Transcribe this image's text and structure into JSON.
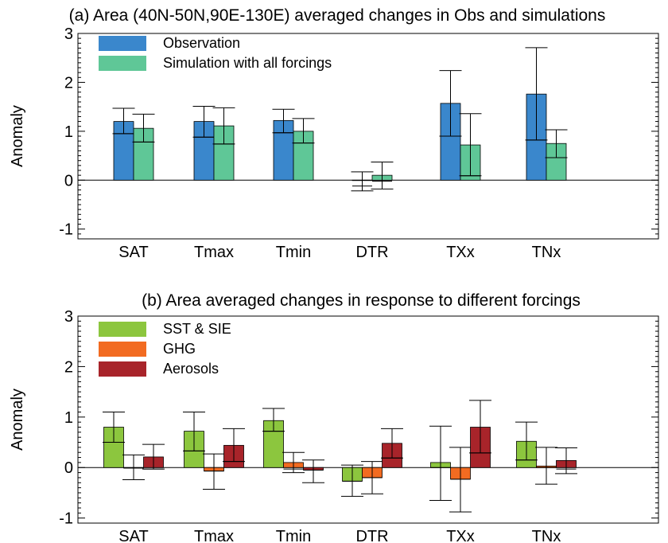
{
  "chart_data": [
    {
      "type": "bar",
      "title": "(a) Area (40N-50N,90E-130E) averaged changes in Obs and simulations",
      "xlabel": "",
      "ylabel": "Anomaly",
      "ylim": [
        -1.2,
        3
      ],
      "yticks": [
        "-1",
        "0",
        "1",
        "2",
        "3"
      ],
      "categories": [
        "SAT",
        "Tmax",
        "Tmin",
        "DTR",
        "TXx",
        "TNx"
      ],
      "legend_position": "top-left",
      "grid": false,
      "series": [
        {
          "name": "Observation",
          "color": "#3a87cc",
          "values": [
            1.2,
            1.2,
            1.22,
            0,
            1.57,
            1.76
          ],
          "box_low": [
            0.95,
            0.88,
            0.97,
            -0.12,
            0.9,
            0.82
          ],
          "box_high": [
            1.2,
            1.2,
            1.22,
            0.0,
            1.57,
            1.76
          ],
          "err_low": [
            0.95,
            0.88,
            0.97,
            -0.22,
            0.9,
            0.82
          ],
          "err_high": [
            1.47,
            1.51,
            1.45,
            0.17,
            2.24,
            2.71
          ]
        },
        {
          "name": "Simulation with all forcings",
          "color": "#5fc797",
          "values": [
            1.06,
            1.11,
            1.0,
            0.1,
            0.72,
            0.75
          ],
          "box_low": [
            0.78,
            0.74,
            0.76,
            -0.02,
            0.09,
            0.46
          ],
          "box_high": [
            1.06,
            1.11,
            1.0,
            0.1,
            0.72,
            0.75
          ],
          "err_low": [
            0.78,
            0.74,
            0.76,
            -0.18,
            0.09,
            0.46
          ],
          "err_high": [
            1.35,
            1.48,
            1.26,
            0.37,
            1.36,
            1.03
          ]
        }
      ]
    },
    {
      "type": "bar",
      "title": "(b) Area averaged changes in response to different forcings",
      "xlabel": "",
      "ylabel": "Anomaly",
      "ylim": [
        -1.1,
        3
      ],
      "yticks": [
        "-1",
        "0",
        "1",
        "2",
        "3"
      ],
      "categories": [
        "SAT",
        "Tmax",
        "Tmin",
        "DTR",
        "TXx",
        "TNx"
      ],
      "legend_position": "top-left",
      "grid": false,
      "series": [
        {
          "name": "SST & SIE",
          "color": "#8cc63e",
          "values": [
            0.8,
            0.72,
            0.93,
            -0.27,
            0.1,
            0.52
          ],
          "box_low": [
            0.5,
            0.33,
            0.72,
            -0.27,
            0.0,
            0.15
          ],
          "box_high": [
            0.8,
            0.72,
            0.93,
            0.0,
            0.1,
            0.52
          ],
          "err_low": [
            0.5,
            0.33,
            0.72,
            -0.57,
            -0.65,
            0.15
          ],
          "err_high": [
            1.1,
            1.1,
            1.17,
            0.05,
            0.82,
            0.9
          ]
        },
        {
          "name": "GHG",
          "color": "#f26b21",
          "values": [
            -0.01,
            -0.07,
            0.1,
            -0.2,
            -0.23,
            0.03
          ],
          "box_low": [
            -0.01,
            -0.07,
            -0.03,
            -0.2,
            -0.23,
            0.0
          ],
          "box_high": [
            0.0,
            0.0,
            0.1,
            0.0,
            0.0,
            0.03
          ],
          "err_low": [
            -0.24,
            -0.43,
            -0.1,
            -0.52,
            -0.88,
            -0.33
          ],
          "err_high": [
            0.25,
            0.27,
            0.3,
            0.12,
            0.4,
            0.4
          ]
        },
        {
          "name": "Aerosols",
          "color": "#a8242a",
          "values": [
            0.21,
            0.44,
            -0.05,
            0.48,
            0.8,
            0.14
          ],
          "box_low": [
            -0.03,
            0.12,
            -0.05,
            0.19,
            0.29,
            -0.03
          ],
          "box_high": [
            0.21,
            0.44,
            0.0,
            0.48,
            0.8,
            0.14
          ],
          "err_low": [
            -0.03,
            0.12,
            -0.3,
            0.19,
            0.29,
            -0.12
          ],
          "err_high": [
            0.46,
            0.77,
            0.15,
            0.77,
            1.33,
            0.39
          ]
        }
      ]
    }
  ]
}
